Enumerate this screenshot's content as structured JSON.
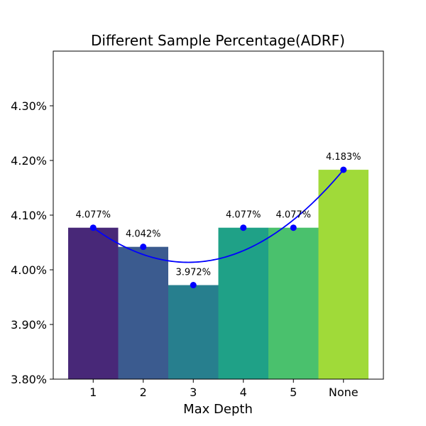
{
  "chart_data": {
    "type": "bar",
    "title": "Different Sample Percentage(ADRF)",
    "xlabel": "Max Depth",
    "ylabel": "",
    "categories": [
      "1",
      "2",
      "3",
      "4",
      "5",
      "None"
    ],
    "values": [
      4.077,
      4.042,
      3.972,
      4.077,
      4.077,
      4.183
    ],
    "data_labels": [
      "4.077%",
      "4.042%",
      "3.972%",
      "4.077%",
      "4.077%",
      "4.183%"
    ],
    "bar_colors": [
      "#482878",
      "#3b5b8f",
      "#277f8e",
      "#1fa187",
      "#4ac16d",
      "#a0da39"
    ],
    "ylim": [
      3.8,
      4.4
    ],
    "yticks": [
      3.8,
      3.9,
      4.0,
      4.1,
      4.2,
      4.3
    ],
    "ytick_labels": [
      "3.80%",
      "3.90%",
      "4.00%",
      "4.10%",
      "4.20%",
      "4.30%"
    ],
    "series": [
      {
        "type": "points",
        "color": "#0000ff",
        "values": [
          4.077,
          4.042,
          3.972,
          4.077,
          4.077,
          4.183
        ]
      },
      {
        "type": "quadratic-fit-curve",
        "color": "#0000ff"
      }
    ],
    "grid": false
  }
}
